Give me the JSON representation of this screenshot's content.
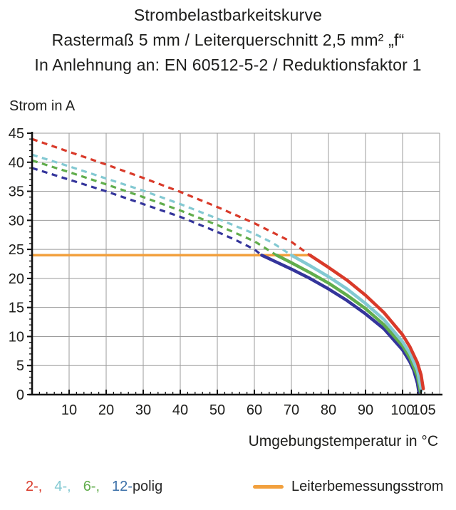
{
  "title": {
    "line1": "Strombelastbarkeitskurve",
    "line2": "Rastermaß 5 mm / Leiterquerschnitt 2,5 mm² „f“",
    "line3": "In Anlehnung an: EN 60512-5-2 / Reduktionsfaktor 1"
  },
  "chart_data": {
    "type": "line",
    "title": "Strombelastbarkeitskurve",
    "xlabel": "Umgebungstemperatur in °C",
    "ylabel": "Strom in A",
    "xlim": [
      0,
      110
    ],
    "ylim": [
      0,
      45
    ],
    "x_tick_labels": [
      10,
      20,
      30,
      40,
      50,
      60,
      70,
      80,
      90,
      100,
      105
    ],
    "x_gridline_step": 10,
    "y_tick_step": 5,
    "y_minor_step": 1,
    "x_minor_step": 2,
    "grid": true,
    "grid_color": "#9b9b9b",
    "axis_color": "#111111",
    "rated_current_line": {
      "label": "Leiterbemessungsstrom",
      "value_a": 24,
      "t_start": 0,
      "t_end": 75.5,
      "color": "#f2a03d"
    },
    "series": [
      {
        "name": "12-polig",
        "color": "#34359b",
        "derating_start_c": 62,
        "dashed": [
          [
            0,
            39
          ],
          [
            10,
            37
          ],
          [
            20,
            35
          ],
          [
            30,
            32.8
          ],
          [
            40,
            30.6
          ],
          [
            50,
            28
          ],
          [
            55,
            26.6
          ],
          [
            60,
            25
          ],
          [
            62,
            24
          ]
        ],
        "solid": [
          [
            62,
            24
          ],
          [
            70,
            21.6
          ],
          [
            75,
            20
          ],
          [
            80,
            18.2
          ],
          [
            85,
            16.2
          ],
          [
            90,
            13.9
          ],
          [
            95,
            11.3
          ],
          [
            100,
            7.7
          ],
          [
            102,
            5.6
          ],
          [
            103,
            4.2
          ],
          [
            104,
            2
          ],
          [
            104.4,
            0.4
          ]
        ]
      },
      {
        "name": "6-polig",
        "color": "#61ad4c",
        "derating_start_c": 66,
        "dashed": [
          [
            0,
            40.3
          ],
          [
            10,
            38.3
          ],
          [
            20,
            36.2
          ],
          [
            30,
            34
          ],
          [
            40,
            31.7
          ],
          [
            50,
            29.2
          ],
          [
            60,
            26.4
          ],
          [
            66,
            24
          ]
        ],
        "solid": [
          [
            66,
            24
          ],
          [
            70,
            22.7
          ],
          [
            75,
            21
          ],
          [
            80,
            19.2
          ],
          [
            85,
            17.1
          ],
          [
            90,
            14.8
          ],
          [
            95,
            12
          ],
          [
            100,
            8.4
          ],
          [
            102,
            6.3
          ],
          [
            104,
            3.2
          ],
          [
            104.8,
            0.5
          ]
        ]
      },
      {
        "name": "4-polig",
        "color": "#83c9d2",
        "derating_start_c": 70,
        "dashed": [
          [
            0,
            41.3
          ],
          [
            10,
            39.3
          ],
          [
            20,
            37.2
          ],
          [
            30,
            35.1
          ],
          [
            40,
            32.8
          ],
          [
            50,
            30.3
          ],
          [
            60,
            27.7
          ],
          [
            65,
            26.1
          ],
          [
            70,
            24
          ]
        ],
        "solid": [
          [
            70,
            24
          ],
          [
            75,
            22.2
          ],
          [
            80,
            20.3
          ],
          [
            85,
            18.2
          ],
          [
            90,
            15.7
          ],
          [
            95,
            12.9
          ],
          [
            100,
            9.1
          ],
          [
            102,
            7.1
          ],
          [
            104,
            4.2
          ],
          [
            105.1,
            0.7
          ]
        ]
      },
      {
        "name": "2-polig",
        "color": "#d93a2a",
        "derating_start_c": 75,
        "dashed": [
          [
            0,
            44
          ],
          [
            10,
            41.8
          ],
          [
            20,
            39.6
          ],
          [
            30,
            37.3
          ],
          [
            40,
            34.9
          ],
          [
            50,
            32.3
          ],
          [
            60,
            29.5
          ],
          [
            70,
            26.3
          ],
          [
            75,
            24
          ]
        ],
        "solid": [
          [
            75,
            24
          ],
          [
            80,
            21.9
          ],
          [
            85,
            19.7
          ],
          [
            90,
            17.1
          ],
          [
            95,
            14.1
          ],
          [
            100,
            10.3
          ],
          [
            102,
            8.2
          ],
          [
            104,
            5.5
          ],
          [
            105,
            3.4
          ],
          [
            105.6,
            1
          ]
        ]
      }
    ]
  },
  "legend_poles": {
    "items": [
      {
        "label": "2-,",
        "color": "#d93a2a"
      },
      {
        "label": "4-,",
        "color": "#83c9d2"
      },
      {
        "label": "6-,",
        "color": "#61ad4c"
      },
      {
        "label": "12-",
        "color": "#3a6fa8"
      }
    ],
    "suffix": {
      "label": "polig",
      "color": "#2b2b2b"
    }
  },
  "legend_rated": {
    "label": "Leiterbemessungsstrom",
    "swatch_color": "#f2a03d"
  }
}
